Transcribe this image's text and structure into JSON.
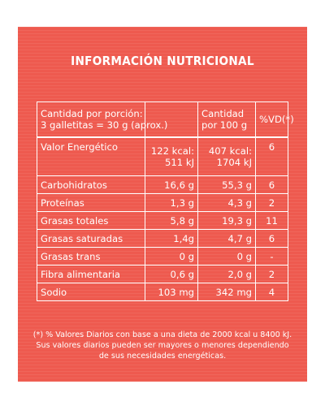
{
  "title": "INFORMACIÓN NUTRICIONAL",
  "header": {
    "portion_line1": "Cantidad por porción:",
    "portion_line2": "3 galletitas = 30 g (aprox.)",
    "per100_line1": "Cantidad",
    "per100_line2": "por 100 g",
    "vd": "%VD(*)"
  },
  "rows": [
    {
      "name": "Valor Energético",
      "portion": [
        "122 kcal:",
        "511 kJ"
      ],
      "per100": [
        "407 kcal:",
        "1704 kJ"
      ],
      "vd": "6"
    },
    {
      "name": "Carbohidratos",
      "portion": "16,6 g",
      "per100": "55,3 g",
      "vd": "6"
    },
    {
      "name": "Proteínas",
      "portion": "1,3 g",
      "per100": "4,3 g",
      "vd": "2"
    },
    {
      "name": "Grasas totales",
      "portion": "5,8 g",
      "per100": "19,3 g",
      "vd": "11"
    },
    {
      "name": "Grasas saturadas",
      "portion": "1,4g",
      "per100": "4,7 g",
      "vd": "6"
    },
    {
      "name": "Grasas trans",
      "portion": "0 g",
      "per100": "0 g",
      "vd": "-"
    },
    {
      "name": "Fibra alimentaria",
      "portion": "0,6 g",
      "per100": "2,0 g",
      "vd": "2"
    },
    {
      "name": "Sodio",
      "portion": "103 mg",
      "per100": "342 mg",
      "vd": "4"
    }
  ],
  "footnote": "(*) % Valores Diarios con base a una dieta de 2000 kcal u 8400 kJ. Sus valores diarios pueden ser mayores o menores dependiendo de sus necesidades energéticas.",
  "colors": {
    "background": "#ee5a4f",
    "text": "#ffffff"
  }
}
